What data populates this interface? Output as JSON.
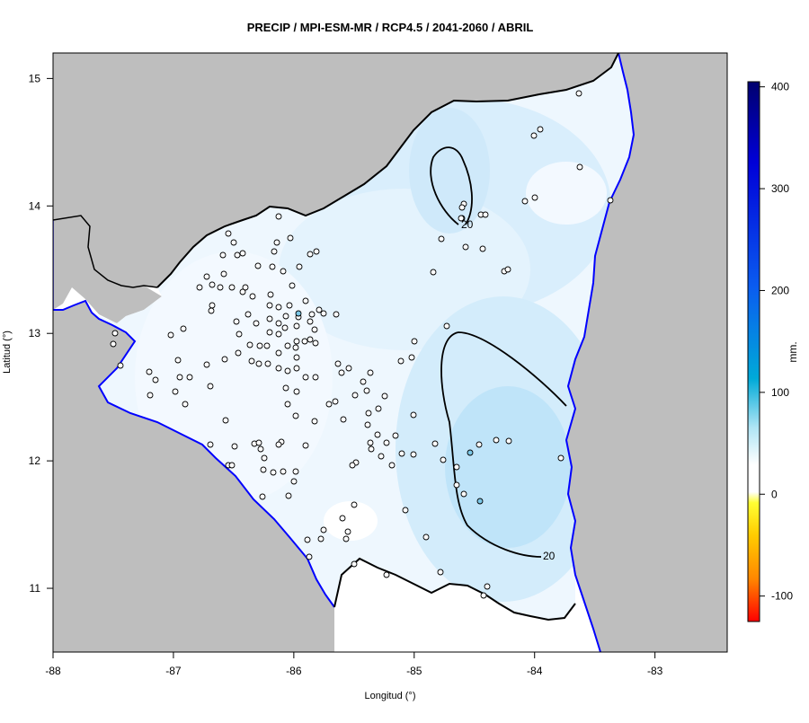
{
  "title": "PRECIP / MPI-ESM-MR / RCP4.5 / 2041-2060 / ABRIL",
  "x_axis": {
    "label": "Longitud (°)",
    "ticks": [
      {
        "value": -88,
        "label": "-88"
      },
      {
        "value": -87,
        "label": "-87"
      },
      {
        "value": -86,
        "label": "-86"
      },
      {
        "value": -85,
        "label": "-85"
      },
      {
        "value": -84,
        "label": "-84"
      },
      {
        "value": -83,
        "label": "-83"
      }
    ]
  },
  "y_axis": {
    "label": "Latitud (°)",
    "ticks": [
      {
        "value": 15,
        "label": "15"
      },
      {
        "value": 14,
        "label": "14"
      },
      {
        "value": 13,
        "label": "13"
      },
      {
        "value": 12,
        "label": "12"
      },
      {
        "value": 11,
        "label": "11"
      }
    ]
  },
  "colorbar": {
    "unit": "mm.",
    "range": [
      -125,
      405
    ],
    "ticks": [
      {
        "value": 400,
        "label": "400"
      },
      {
        "value": 300,
        "label": "300"
      },
      {
        "value": 200,
        "label": "200"
      },
      {
        "value": 100,
        "label": "100"
      },
      {
        "value": 0,
        "label": "0"
      },
      {
        "value": -100,
        "label": "-100"
      }
    ],
    "colors": [
      "#00006e",
      "#0000d8",
      "#0a5cf0",
      "#00aad8",
      "#aee4f4",
      "#ffffff",
      "#ffff33",
      "#ffcc00",
      "#ff8800",
      "#ff0000"
    ]
  },
  "contours": [
    {
      "label": "20"
    },
    {
      "label": "20"
    },
    {
      "label": "20"
    }
  ],
  "colors": {
    "land_outside": "#bebebe",
    "coastline": "#0000ff",
    "border": "#000000",
    "contour_line": "#000000",
    "light_blue": "#d9eefc",
    "mid_blue": "#c2e6fa",
    "station_fill": "#ffffff"
  }
}
